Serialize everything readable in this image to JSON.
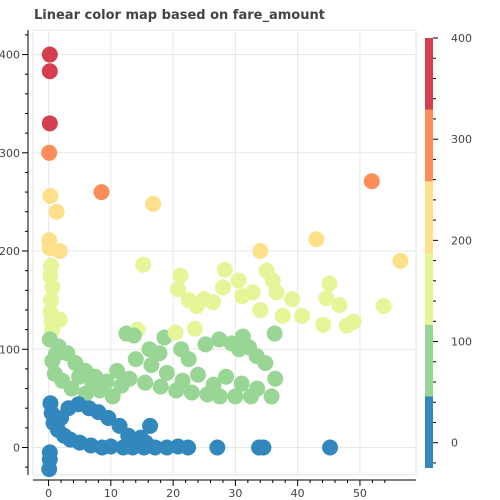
{
  "chart_data": {
    "type": "scatter",
    "title": "Linear color map based on fare_amount",
    "xlabel": "",
    "ylabel": "",
    "x_range": [
      -2.5,
      59
    ],
    "y_range": [
      -28,
      425
    ],
    "x_ticks": [
      0,
      10,
      20,
      30,
      40,
      50
    ],
    "y_ticks": [
      0,
      100,
      200,
      300,
      400
    ],
    "grid": true,
    "color_mapper": {
      "type": "linear",
      "field": "fare_amount",
      "low": -25,
      "high": 400,
      "palette": [
        "#3288bd",
        "#99d594",
        "#e6f598",
        "#fee08b",
        "#fc8d59",
        "#d53e4f"
      ],
      "colorbar_ticks": [
        0,
        100,
        200,
        300,
        400
      ],
      "colorbar_placement": "right"
    },
    "points": [
      [
        0.2,
        400
      ],
      [
        0.2,
        383
      ],
      [
        0.2,
        330
      ],
      [
        0.1,
        300
      ],
      [
        8.5,
        260
      ],
      [
        51.9,
        271
      ],
      [
        0.3,
        256
      ],
      [
        16.8,
        248
      ],
      [
        1.3,
        240
      ],
      [
        0.1,
        211
      ],
      [
        0.2,
        203
      ],
      [
        1.8,
        200
      ],
      [
        34.0,
        200
      ],
      [
        43.0,
        212
      ],
      [
        56.5,
        190
      ],
      [
        0.4,
        185
      ],
      [
        0.3,
        175
      ],
      [
        0.6,
        163
      ],
      [
        15.2,
        186
      ],
      [
        21.2,
        175
      ],
      [
        20.8,
        161
      ],
      [
        22.5,
        150
      ],
      [
        23.8,
        144
      ],
      [
        25.0,
        151
      ],
      [
        26.4,
        148
      ],
      [
        28.3,
        181
      ],
      [
        28.0,
        163
      ],
      [
        30.5,
        170
      ],
      [
        31.1,
        154
      ],
      [
        32.8,
        158
      ],
      [
        35.0,
        180
      ],
      [
        36.0,
        170
      ],
      [
        36.6,
        158
      ],
      [
        39.1,
        151
      ],
      [
        45.1,
        167
      ],
      [
        44.6,
        152
      ],
      [
        46.7,
        145
      ],
      [
        47.9,
        124
      ],
      [
        49.0,
        128
      ],
      [
        53.8,
        144
      ],
      [
        37.6,
        134
      ],
      [
        36.3,
        116
      ],
      [
        40.7,
        134
      ],
      [
        44.1,
        125
      ],
      [
        34.0,
        140
      ],
      [
        0.4,
        150
      ],
      [
        0.3,
        138
      ],
      [
        0.5,
        128
      ],
      [
        1.8,
        130
      ],
      [
        0.6,
        120
      ],
      [
        0.2,
        110
      ],
      [
        1.6,
        103
      ],
      [
        3.0,
        96
      ],
      [
        4.3,
        86
      ],
      [
        5.9,
        78
      ],
      [
        7.5,
        72
      ],
      [
        9.3,
        67
      ],
      [
        11.7,
        63
      ],
      [
        12.5,
        116
      ],
      [
        14.3,
        120
      ],
      [
        13.7,
        114
      ],
      [
        16.2,
        100
      ],
      [
        17.8,
        96
      ],
      [
        18.6,
        112
      ],
      [
        20.4,
        117
      ],
      [
        21.3,
        100
      ],
      [
        22.5,
        90
      ],
      [
        23.5,
        121
      ],
      [
        25.2,
        105
      ],
      [
        27.4,
        110
      ],
      [
        29.4,
        106
      ],
      [
        30.6,
        100
      ],
      [
        31.2,
        113
      ],
      [
        32.2,
        102
      ],
      [
        33.4,
        93
      ],
      [
        34.8,
        86
      ],
      [
        36.4,
        70
      ],
      [
        35.8,
        52
      ],
      [
        33.5,
        60
      ],
      [
        31.0,
        65
      ],
      [
        28.5,
        72
      ],
      [
        26.5,
        64
      ],
      [
        24.0,
        74
      ],
      [
        21.5,
        68
      ],
      [
        19.0,
        76
      ],
      [
        16.5,
        84
      ],
      [
        14.0,
        90
      ],
      [
        3.7,
        60
      ],
      [
        6.0,
        55
      ],
      [
        8.2,
        58
      ],
      [
        10.3,
        52
      ],
      [
        1.0,
        75
      ],
      [
        2.2,
        68
      ],
      [
        0.6,
        88
      ],
      [
        1.2,
        95
      ],
      [
        4.9,
        72
      ],
      [
        7.0,
        66
      ],
      [
        11.0,
        78
      ],
      [
        13.0,
        70
      ],
      [
        15.5,
        66
      ],
      [
        18.0,
        62
      ],
      [
        20.5,
        58
      ],
      [
        23.0,
        56
      ],
      [
        25.5,
        54
      ],
      [
        27.5,
        52
      ],
      [
        30.0,
        52
      ],
      [
        32.5,
        52
      ],
      [
        0.3,
        45
      ],
      [
        0.5,
        35
      ],
      [
        0.8,
        25
      ],
      [
        1.5,
        18
      ],
      [
        2.5,
        12
      ],
      [
        3.5,
        8
      ],
      [
        5.0,
        5
      ],
      [
        6.8,
        2
      ],
      [
        8.6,
        0
      ],
      [
        10.0,
        1
      ],
      [
        12.0,
        0
      ],
      [
        13.5,
        0
      ],
      [
        15.3,
        0
      ],
      [
        17.1,
        0
      ],
      [
        19.0,
        0
      ],
      [
        20.8,
        1
      ],
      [
        22.4,
        0
      ],
      [
        27.1,
        0
      ],
      [
        33.8,
        0
      ],
      [
        34.5,
        0
      ],
      [
        45.2,
        0
      ],
      [
        15.6,
        5
      ],
      [
        12.8,
        12
      ],
      [
        11.4,
        22
      ],
      [
        9.6,
        30
      ],
      [
        8.0,
        36
      ],
      [
        6.5,
        40
      ],
      [
        4.8,
        44
      ],
      [
        3.2,
        40
      ],
      [
        2.0,
        30
      ],
      [
        14.8,
        10
      ],
      [
        16.3,
        22
      ],
      [
        0.2,
        -5
      ],
      [
        0.2,
        -12
      ],
      [
        0.1,
        -22
      ]
    ]
  }
}
